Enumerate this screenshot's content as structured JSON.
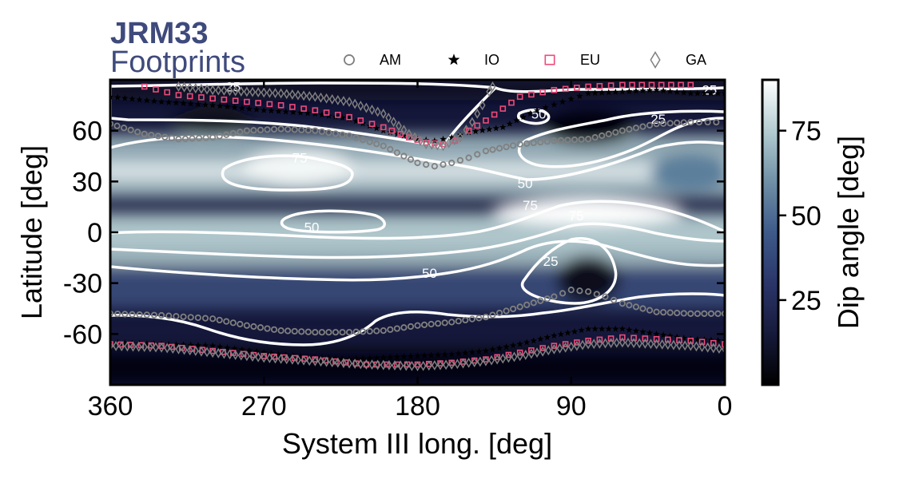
{
  "chart_data": {
    "type": "heatmap",
    "title": "JRM33",
    "subtitle": "Footprints",
    "xlabel": "System III long. [deg]",
    "ylabel": "Latitude [deg]",
    "xlim": [
      360,
      0
    ],
    "ylim": [
      -90,
      90
    ],
    "xticks": [
      "360",
      "270",
      "180",
      "90",
      "0"
    ],
    "xtick_values": [
      360,
      270,
      180,
      90,
      0
    ],
    "yticks": [
      "60",
      "30",
      "0",
      "-30",
      "-60"
    ],
    "ytick_values": [
      60,
      30,
      0,
      -30,
      -60
    ],
    "colorbar": {
      "label": "Dip angle [deg]",
      "range": [
        0,
        90
      ],
      "ticks": [
        "75",
        "50",
        "25"
      ],
      "tick_values": [
        75,
        50,
        25
      ],
      "colormap": [
        "#000000",
        "#161a3a",
        "#2a3569",
        "#3e5a8a",
        "#6f90a6",
        "#b4ccd1",
        "#ffffff"
      ]
    },
    "contour_levels": [
      25,
      50,
      75
    ],
    "contour_labels": [
      {
        "level": "25",
        "lon": 288,
        "lat": 86
      },
      {
        "level": "25",
        "lon": 9,
        "lat": 84
      },
      {
        "level": "25",
        "lon": 39,
        "lat": 67
      },
      {
        "level": "25",
        "lon": 102,
        "lat": -17
      },
      {
        "level": "50",
        "lon": 109,
        "lat": 70
      },
      {
        "level": "50",
        "lon": 117,
        "lat": 29
      },
      {
        "level": "50",
        "lon": 242,
        "lat": 3
      },
      {
        "level": "50",
        "lon": 173,
        "lat": -24
      },
      {
        "level": "75",
        "lon": 249,
        "lat": 44
      },
      {
        "level": "75",
        "lon": 114,
        "lat": 16
      },
      {
        "level": "75",
        "lon": 87,
        "lat": 10
      }
    ],
    "legend": {
      "placement": "top",
      "entries": [
        {
          "name": "AM",
          "marker": "circle",
          "color": "#808080"
        },
        {
          "name": "IO",
          "marker": "star",
          "color": "#000000"
        },
        {
          "name": "EU",
          "marker": "square",
          "color": "#ee4a7a"
        },
        {
          "name": "GA",
          "marker": "diamond",
          "color": "#808080"
        }
      ]
    },
    "series": [
      {
        "name": "AM",
        "north": [
          [
            360,
            64
          ],
          [
            340,
            58
          ],
          [
            320,
            55
          ],
          [
            300,
            56
          ],
          [
            280,
            60
          ],
          [
            260,
            61
          ],
          [
            240,
            60
          ],
          [
            220,
            57
          ],
          [
            200,
            51
          ],
          [
            180,
            41
          ],
          [
            170,
            39
          ],
          [
            160,
            41
          ],
          [
            150,
            44
          ],
          [
            140,
            48
          ],
          [
            120,
            52
          ],
          [
            100,
            54
          ],
          [
            80,
            55
          ],
          [
            60,
            60
          ],
          [
            40,
            64
          ],
          [
            20,
            65
          ],
          [
            5,
            65
          ]
        ],
        "south": [
          [
            360,
            -48
          ],
          [
            330,
            -49
          ],
          [
            300,
            -51
          ],
          [
            280,
            -55
          ],
          [
            260,
            -58
          ],
          [
            240,
            -59
          ],
          [
            220,
            -59
          ],
          [
            200,
            -58
          ],
          [
            180,
            -55
          ],
          [
            160,
            -53
          ],
          [
            140,
            -50
          ],
          [
            120,
            -44
          ],
          [
            100,
            -38
          ],
          [
            90,
            -34
          ],
          [
            80,
            -35
          ],
          [
            70,
            -38
          ],
          [
            60,
            -42
          ],
          [
            40,
            -47
          ],
          [
            20,
            -48
          ],
          [
            0,
            -48
          ]
        ]
      },
      {
        "name": "IO",
        "north": [
          [
            360,
            80
          ],
          [
            330,
            77
          ],
          [
            300,
            75
          ],
          [
            270,
            72
          ],
          [
            240,
            70
          ],
          [
            220,
            67
          ],
          [
            200,
            60
          ],
          [
            180,
            55
          ],
          [
            170,
            54
          ],
          [
            160,
            56
          ],
          [
            150,
            59
          ],
          [
            130,
            62
          ],
          [
            110,
            72
          ],
          [
            95,
            77
          ],
          [
            80,
            82
          ],
          [
            60,
            83
          ],
          [
            40,
            84
          ],
          [
            20,
            82
          ],
          [
            0,
            82
          ]
        ],
        "south": [
          [
            360,
            -65
          ],
          [
            330,
            -66
          ],
          [
            300,
            -67
          ],
          [
            270,
            -71
          ],
          [
            240,
            -74
          ],
          [
            220,
            -75
          ],
          [
            200,
            -74
          ],
          [
            180,
            -73
          ],
          [
            160,
            -72
          ],
          [
            140,
            -70
          ],
          [
            120,
            -66
          ],
          [
            100,
            -61
          ],
          [
            80,
            -57
          ],
          [
            60,
            -57
          ],
          [
            40,
            -60
          ],
          [
            20,
            -63
          ],
          [
            0,
            -64
          ]
        ]
      },
      {
        "name": "EU",
        "north": [
          [
            340,
            86
          ],
          [
            320,
            81
          ],
          [
            300,
            79
          ],
          [
            280,
            77
          ],
          [
            260,
            75
          ],
          [
            240,
            72
          ],
          [
            220,
            68
          ],
          [
            200,
            62
          ],
          [
            185,
            56
          ],
          [
            175,
            53
          ],
          [
            165,
            52
          ],
          [
            158,
            54
          ],
          [
            150,
            60
          ],
          [
            140,
            66
          ],
          [
            130,
            73
          ],
          [
            120,
            80
          ],
          [
            100,
            84
          ],
          [
            80,
            86
          ],
          [
            60,
            87
          ],
          [
            20,
            87
          ]
        ],
        "south": [
          [
            360,
            -66
          ],
          [
            330,
            -67
          ],
          [
            300,
            -70
          ],
          [
            270,
            -73
          ],
          [
            240,
            -75
          ],
          [
            210,
            -78
          ],
          [
            180,
            -78
          ],
          [
            160,
            -77
          ],
          [
            140,
            -75
          ],
          [
            120,
            -71
          ],
          [
            100,
            -67
          ],
          [
            80,
            -64
          ],
          [
            60,
            -62
          ],
          [
            40,
            -63
          ],
          [
            20,
            -64
          ],
          [
            0,
            -66
          ]
        ]
      },
      {
        "name": "GA",
        "north": [
          [
            320,
            86
          ],
          [
            300,
            84
          ],
          [
            280,
            83
          ],
          [
            260,
            82
          ],
          [
            240,
            80
          ],
          [
            220,
            77
          ],
          [
            200,
            70
          ],
          [
            185,
            58
          ],
          [
            175,
            52
          ],
          [
            165,
            51
          ],
          [
            155,
            56
          ],
          [
            148,
            65
          ],
          [
            142,
            75
          ],
          [
            138,
            83
          ],
          [
            136,
            86
          ]
        ],
        "south": [
          [
            360,
            -67
          ],
          [
            330,
            -68
          ],
          [
            300,
            -71
          ],
          [
            270,
            -74
          ],
          [
            240,
            -76
          ],
          [
            210,
            -78
          ],
          [
            180,
            -79
          ],
          [
            160,
            -78
          ],
          [
            140,
            -76
          ],
          [
            120,
            -73
          ],
          [
            100,
            -69
          ],
          [
            80,
            -66
          ],
          [
            60,
            -65
          ],
          [
            40,
            -66
          ],
          [
            20,
            -67
          ],
          [
            0,
            -69
          ]
        ]
      }
    ]
  }
}
